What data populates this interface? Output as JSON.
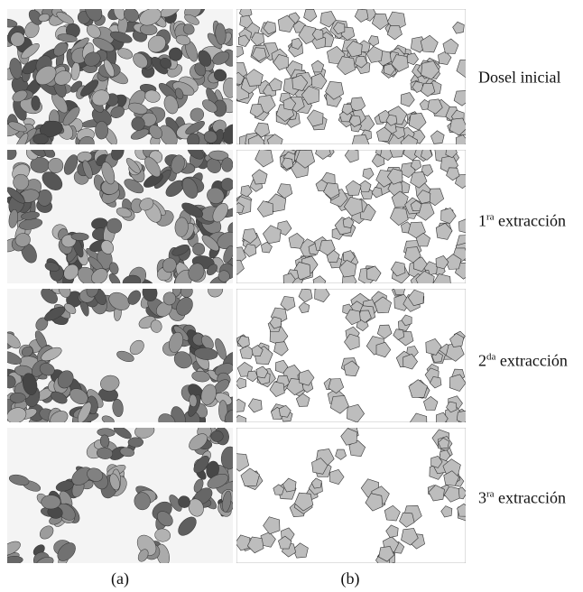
{
  "rows": [
    {
      "label": {
        "text": "Dosel inicial"
      }
    },
    {
      "label": {
        "number": "1",
        "superscript": "ra",
        "text": "extracción"
      }
    },
    {
      "label": {
        "number": "2",
        "superscript": "da",
        "text": "extracción"
      }
    },
    {
      "label": {
        "number": "3",
        "superscript": "ra",
        "text": "extracción"
      }
    }
  ],
  "columns": [
    "(a)",
    "(b)"
  ]
}
